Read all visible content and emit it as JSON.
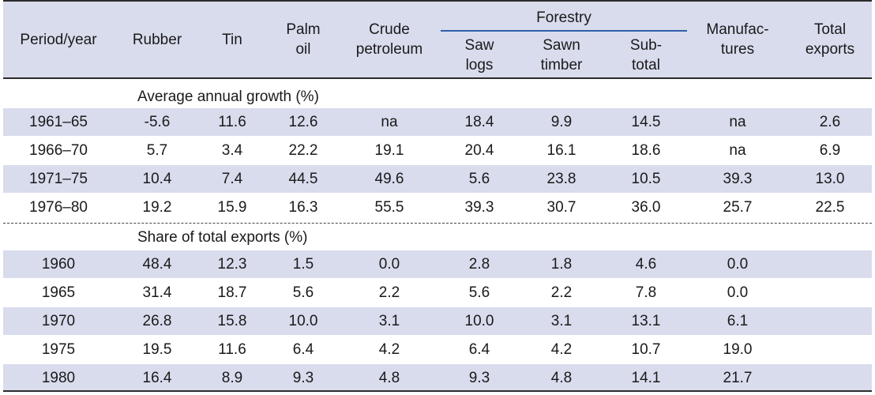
{
  "header": {
    "period": "Period/year",
    "rubber": "Rubber",
    "tin": "Tin",
    "palm1": "Palm",
    "palm2": "oil",
    "crude1": "Crude",
    "crude2": "petroleum",
    "forestry": "Forestry",
    "saw1": "Saw",
    "saw2": "logs",
    "sawn1": "Sawn",
    "sawn2": "timber",
    "sub1": "Sub-",
    "sub2": "total",
    "manu1": "Manufac-",
    "manu2": "tures",
    "total1": "Total",
    "total2": "exports"
  },
  "sections": {
    "growth": "Average annual growth (%)",
    "share": "Share of total exports (%)"
  },
  "growth_rows": [
    [
      "1961–65",
      "-5.6",
      "11.6",
      "12.6",
      "na",
      "18.4",
      "9.9",
      "14.5",
      "na",
      "2.6"
    ],
    [
      "1966–70",
      "5.7",
      "3.4",
      "22.2",
      "19.1",
      "20.4",
      "16.1",
      "18.6",
      "na",
      "6.9"
    ],
    [
      "1971–75",
      "10.4",
      "7.4",
      "44.5",
      "49.6",
      "5.6",
      "23.8",
      "10.5",
      "39.3",
      "13.0"
    ],
    [
      "1976–80",
      "19.2",
      "15.9",
      "16.3",
      "55.5",
      "39.3",
      "30.7",
      "36.0",
      "25.7",
      "22.5"
    ]
  ],
  "share_rows": [
    [
      "1960",
      "48.4",
      "12.3",
      "1.5",
      "0.0",
      "2.8",
      "1.8",
      "4.6",
      "0.0",
      ""
    ],
    [
      "1965",
      "31.4",
      "18.7",
      "5.6",
      "2.2",
      "5.6",
      "2.2",
      "7.8",
      "0.0",
      ""
    ],
    [
      "1970",
      "26.8",
      "15.8",
      "10.0",
      "3.1",
      "10.0",
      "3.1",
      "13.1",
      "6.1",
      ""
    ],
    [
      "1975",
      "19.5",
      "11.6",
      "6.4",
      "4.2",
      "6.4",
      "4.2",
      "10.7",
      "19.0",
      ""
    ],
    [
      "1980",
      "16.4",
      "8.9",
      "9.3",
      "4.8",
      "9.3",
      "4.8",
      "14.1",
      "21.7",
      ""
    ]
  ],
  "colors": {
    "shade": "#d9dced",
    "rule": "#2b2b2b",
    "forestry_rule": "#2e5fa8"
  }
}
